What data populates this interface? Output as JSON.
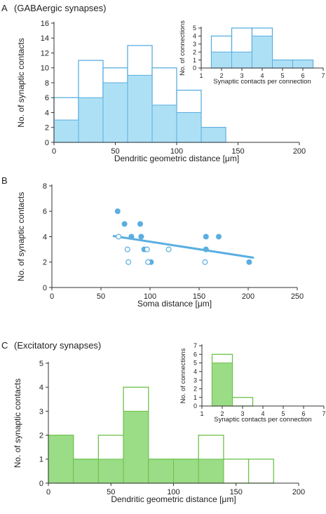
{
  "colors": {
    "blue_fill": "#aee0f5",
    "blue_line": "#5aaee0",
    "green_fill": "#9bdc86",
    "green_line": "#6cc24a",
    "axis": "#333333"
  },
  "chart_data": [
    {
      "id": "A-main",
      "panel_label": "A",
      "title": "(GABAergic synapses)",
      "type": "bar",
      "xlabel": "Dendritic geometric distance [μm]",
      "ylabel": "No. of synaptic contacts",
      "xlim": [
        0,
        200
      ],
      "ylim": [
        0,
        16
      ],
      "xticks": [
        0,
        50,
        100,
        150,
        200
      ],
      "yticks": [
        0,
        2,
        4,
        6,
        8,
        10,
        12,
        14,
        16
      ],
      "bin_edges": [
        0,
        20,
        40,
        60,
        80,
        100,
        120,
        140
      ],
      "series": [
        {
          "values": [
            6,
            11,
            10,
            13,
            10,
            7,
            2
          ]
        },
        {
          "values": [
            3,
            6,
            8,
            9,
            5,
            4,
            2
          ]
        }
      ]
    },
    {
      "id": "A-inset",
      "type": "bar",
      "xlabel": "Synaptic contacts per connection",
      "ylabel": "No. of connections",
      "xlim": [
        1,
        7
      ],
      "ylim": [
        0,
        5
      ],
      "xticks": [
        1,
        2,
        3,
        4,
        5,
        6,
        7
      ],
      "yticks": [
        0,
        1,
        2,
        3,
        4,
        5
      ],
      "bin_edges": [
        1.5,
        2.5,
        3.5,
        4.5,
        5.5,
        6.5
      ],
      "series": [
        {
          "values": [
            4,
            5,
            5,
            1,
            1
          ]
        },
        {
          "values": [
            2,
            2,
            4,
            1,
            1
          ]
        }
      ]
    },
    {
      "id": "B",
      "panel_label": "B",
      "type": "scatter",
      "xlabel": "Soma distance [μm]",
      "ylabel": "No. of synaptic contacts",
      "xlim": [
        0,
        250
      ],
      "ylim": [
        0,
        8
      ],
      "xticks": [
        0,
        50,
        100,
        150,
        200,
        250
      ],
      "yticks": [
        0,
        2,
        4,
        6,
        8
      ],
      "series": [
        {
          "marker": "filled",
          "points": [
            [
              67,
              6
            ],
            [
              74,
              5
            ],
            [
              90,
              5
            ],
            [
              81,
              4
            ],
            [
              91,
              4
            ],
            [
              157,
              4
            ],
            [
              170,
              4
            ],
            [
              94,
              3
            ],
            [
              157,
              3
            ],
            [
              101,
              2
            ],
            [
              201,
              2
            ]
          ]
        },
        {
          "marker": "open",
          "points": [
            [
              68,
              4
            ],
            [
              77,
              3
            ],
            [
              97,
              3
            ],
            [
              119,
              3
            ],
            [
              78,
              2
            ],
            [
              98,
              2
            ],
            [
              156,
              2
            ]
          ]
        }
      ],
      "trendline": [
        [
          63,
          4.05
        ],
        [
          205,
          2.35
        ]
      ]
    },
    {
      "id": "C-main",
      "panel_label": "C",
      "title": "(Excitatory synapses)",
      "type": "bar",
      "xlabel": "Dendritic geometric distance [μm]",
      "ylabel": "No. of synaptic contacts",
      "xlim": [
        0,
        200
      ],
      "ylim": [
        0,
        5
      ],
      "xticks": [
        0,
        50,
        100,
        150,
        200
      ],
      "yticks": [
        0,
        1,
        2,
        3,
        4,
        5
      ],
      "bin_edges": [
        0,
        20,
        40,
        60,
        80,
        100,
        120,
        140,
        160,
        180
      ],
      "series": [
        {
          "values": [
            2,
            1,
            2,
            4,
            1,
            1,
            2,
            1,
            1
          ]
        },
        {
          "values": [
            2,
            1,
            1,
            3,
            1,
            1,
            1,
            0,
            0
          ]
        }
      ]
    },
    {
      "id": "C-inset",
      "type": "bar",
      "xlabel": "Synaptic contacts per connection",
      "ylabel": "No. of connections",
      "xlim": [
        1,
        7
      ],
      "ylim": [
        0,
        7
      ],
      "xticks": [
        1,
        2,
        3,
        4,
        5,
        6,
        7
      ],
      "yticks": [
        0,
        1,
        2,
        3,
        4,
        5,
        6,
        7
      ],
      "bin_edges": [
        1.5,
        2.5,
        3.5
      ],
      "series": [
        {
          "values": [
            6,
            1
          ]
        },
        {
          "values": [
            5,
            0
          ]
        }
      ]
    }
  ]
}
